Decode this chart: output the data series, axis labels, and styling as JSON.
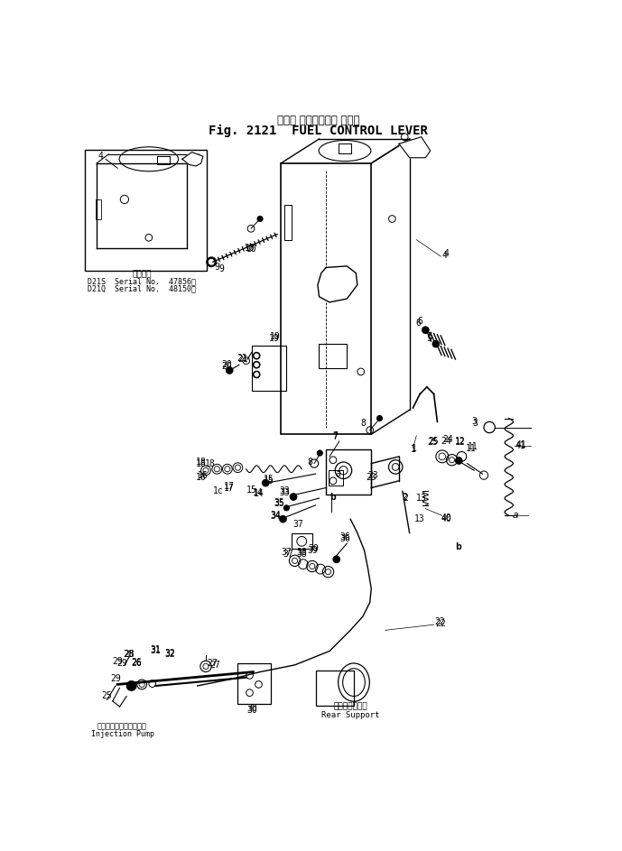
{
  "title_jp": "フェル コントロール レバー",
  "title_en": "Fig. 2121  FUEL CONTROL LEVER",
  "bg_color": "#ffffff",
  "line_color": "#000000",
  "inset_text_line1": "適用号機",
  "inset_text_line2": "D21S  Serial No.  47856〜",
  "inset_text_line3": "D21Q  Serial No.  48150〜",
  "bottom_left_jp": "インジェクションポンプ",
  "bottom_left_en": "Injection Pump",
  "bottom_right_jp": "リヤーサポート",
  "bottom_right_en": "Rear Support"
}
